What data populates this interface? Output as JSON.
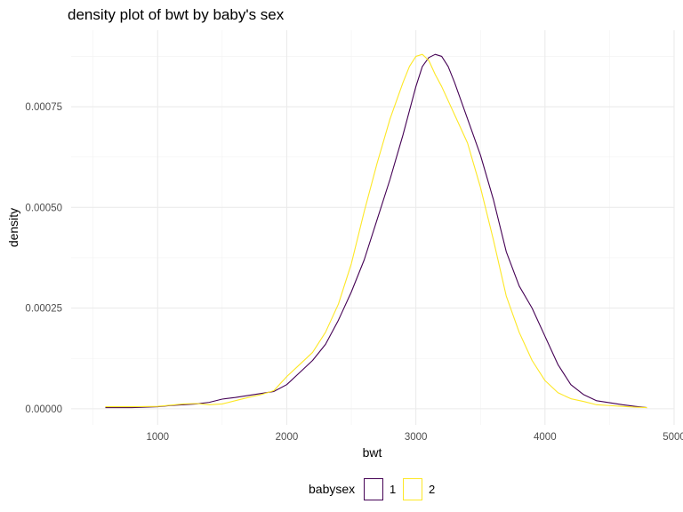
{
  "chart_data": {
    "type": "line",
    "title": "density plot of bwt by baby's sex",
    "xlabel": "bwt",
    "ylabel": "density",
    "xlim": [
      330,
      5000
    ],
    "ylim": [
      -4e-05,
      0.00094
    ],
    "xticks": [
      1000,
      2000,
      3000,
      4000,
      5000
    ],
    "xtick_labels": [
      "1000",
      "2000",
      "3000",
      "4000",
      "5000"
    ],
    "yticks": [
      0.0,
      0.00025,
      0.0005,
      0.00075
    ],
    "ytick_labels": [
      "0.00000",
      "0.00025",
      "0.00050",
      "0.00075"
    ],
    "grid": true,
    "legend": {
      "title": "babysex",
      "position": "bottom",
      "entries": [
        "1",
        "2"
      ]
    },
    "colors": {
      "1": "#440154",
      "2": "#FDE725"
    },
    "series": [
      {
        "name": "1",
        "x": [
          595,
          800,
          1000,
          1100,
          1200,
          1300,
          1400,
          1500,
          1600,
          1700,
          1800,
          1900,
          2000,
          2100,
          2200,
          2300,
          2400,
          2500,
          2600,
          2700,
          2800,
          2900,
          3000,
          3050,
          3100,
          3150,
          3200,
          3250,
          3300,
          3400,
          3500,
          3600,
          3700,
          3800,
          3900,
          4000,
          4100,
          4200,
          4300,
          4400,
          4500,
          4600,
          4700,
          4790
        ],
        "y": [
          3e-06,
          3e-06,
          5e-06,
          8e-06,
          1e-05,
          1.2e-05,
          1.6e-05,
          2.4e-05,
          2.8e-05,
          3.3e-05,
          3.8e-05,
          4.3e-05,
          6e-05,
          9e-05,
          0.00012,
          0.00016,
          0.00022,
          0.00029,
          0.00037,
          0.00047,
          0.00057,
          0.00068,
          0.0008,
          0.00085,
          0.000872,
          0.00088,
          0.000875,
          0.00085,
          0.00081,
          0.00072,
          0.00063,
          0.00052,
          0.00039,
          0.000305,
          0.00025,
          0.00018,
          0.00011,
          6e-05,
          3.5e-05,
          2e-05,
          1.5e-05,
          1e-05,
          6e-06,
          3e-06
        ]
      },
      {
        "name": "2",
        "x": [
          595,
          800,
          1000,
          1100,
          1200,
          1300,
          1400,
          1500,
          1600,
          1700,
          1800,
          1900,
          2000,
          2100,
          2200,
          2300,
          2400,
          2500,
          2600,
          2700,
          2800,
          2900,
          2950,
          3000,
          3050,
          3100,
          3150,
          3200,
          3300,
          3400,
          3500,
          3600,
          3700,
          3800,
          3900,
          4000,
          4100,
          4200,
          4300,
          4400,
          4500,
          4600,
          4700,
          4790
        ],
        "y": [
          5e-06,
          5e-06,
          6e-06,
          9e-06,
          1.2e-05,
          1.3e-05,
          1e-05,
          1.2e-05,
          2e-05,
          2.8e-05,
          3.5e-05,
          4.5e-05,
          8e-05,
          0.00011,
          0.00014,
          0.00019,
          0.00026,
          0.00036,
          0.00049,
          0.00061,
          0.00072,
          0.00081,
          0.00085,
          0.000875,
          0.00088,
          0.000865,
          0.00083,
          0.0008,
          0.00073,
          0.00066,
          0.00055,
          0.00042,
          0.00028,
          0.00019,
          0.00012,
          7e-05,
          4e-05,
          2.5e-05,
          1.8e-05,
          1e-05,
          8e-06,
          6e-06,
          4e-06,
          3e-06
        ]
      }
    ]
  }
}
